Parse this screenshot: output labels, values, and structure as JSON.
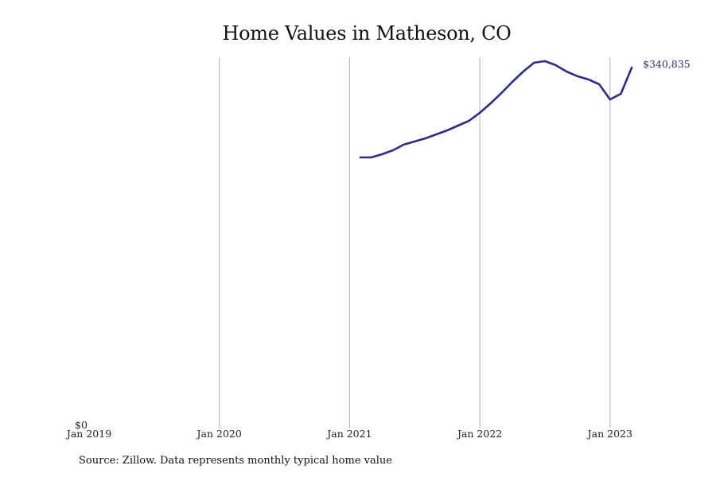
{
  "title": "Home Values in Matheson, CO",
  "source": "Source: Zillow. Data represents monthly typical home value",
  "colors": {
    "line": "#2e2d84",
    "grid": "#b0b0b0",
    "text": "#111111"
  },
  "end_label": "$340,835",
  "y_axis_label": "$0",
  "chart_data": {
    "type": "line",
    "title": "Home Values in Matheson, CO",
    "xlabel": "",
    "ylabel": "",
    "x_tick_labels": [
      "Jan 2019",
      "Jan 2020",
      "Jan 2021",
      "Jan 2022",
      "Jan 2023"
    ],
    "y_tick_labels": [
      "$0"
    ],
    "ylim": [
      0,
      345000
    ],
    "grid": {
      "vertical": true,
      "horizontal": false
    },
    "legend": null,
    "annotations": [
      {
        "text": "$340,835",
        "at": "Mar 2023"
      }
    ],
    "series": [
      {
        "name": "Typical home value",
        "x": [
          "Feb 2021",
          "Mar 2021",
          "Apr 2021",
          "May 2021",
          "Jun 2021",
          "Jul 2021",
          "Aug 2021",
          "Sep 2021",
          "Oct 2021",
          "Nov 2021",
          "Dec 2021",
          "Jan 2022",
          "Feb 2022",
          "Mar 2022",
          "Apr 2022",
          "May 2022",
          "Jun 2022",
          "Jul 2022",
          "Aug 2022",
          "Sep 2022",
          "Oct 2022",
          "Nov 2022",
          "Dec 2022",
          "Jan 2023",
          "Feb 2023",
          "Mar 2023"
        ],
        "month_index": [
          25,
          26,
          27,
          28,
          29,
          30,
          31,
          32,
          33,
          34,
          35,
          36,
          37,
          38,
          39,
          40,
          41,
          42,
          43,
          44,
          45,
          46,
          47,
          48,
          49,
          50
        ],
        "values": [
          255800,
          255800,
          258800,
          262600,
          267900,
          270900,
          273900,
          277600,
          281400,
          285900,
          290400,
          298000,
          307000,
          316800,
          327300,
          337100,
          345400,
          346900,
          343100,
          337100,
          332600,
          329600,
          325000,
          310700,
          316000,
          340835
        ]
      }
    ]
  }
}
